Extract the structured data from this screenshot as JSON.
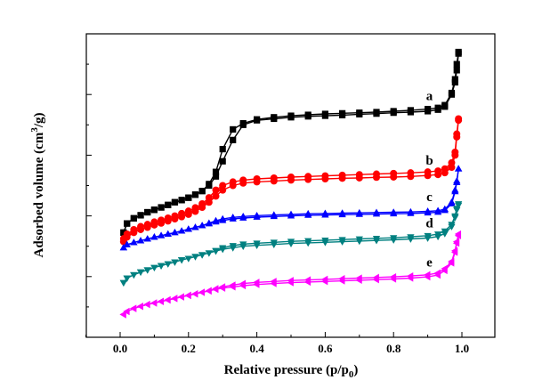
{
  "chart_data": {
    "type": "line",
    "xlabel": {
      "main": "Relative pressure (p/p",
      "sub": "0",
      "tail": ")"
    },
    "ylabel": {
      "main": "Adsorbed volume (cm",
      "sup": "3",
      "tail": "/g)"
    },
    "xlim": [
      -0.1,
      1.05
    ],
    "ylim": [
      0,
      10
    ],
    "xticks": [
      "0.0",
      "0.2",
      "0.4",
      "0.6",
      "0.8",
      "1.0"
    ],
    "grid": false,
    "yticks_labeled": false,
    "series": [
      {
        "label": "a",
        "color": "#000000",
        "marker": "square",
        "x": [
          0.01,
          0.02,
          0.04,
          0.06,
          0.08,
          0.1,
          0.12,
          0.14,
          0.16,
          0.18,
          0.2,
          0.22,
          0.24,
          0.26,
          0.28,
          0.3,
          0.33,
          0.36,
          0.4,
          0.45,
          0.5,
          0.55,
          0.6,
          0.65,
          0.7,
          0.75,
          0.8,
          0.85,
          0.9,
          0.93,
          0.95,
          0.97,
          0.98,
          0.985,
          0.99
        ],
        "y": [
          3.45,
          3.75,
          3.92,
          4.02,
          4.12,
          4.2,
          4.28,
          4.36,
          4.45,
          4.52,
          4.6,
          4.7,
          4.82,
          5.0,
          5.3,
          5.8,
          6.5,
          7.0,
          7.15,
          7.2,
          7.25,
          7.28,
          7.3,
          7.32,
          7.35,
          7.37,
          7.4,
          7.42,
          7.45,
          7.5,
          7.6,
          8.0,
          8.4,
          8.8,
          9.35
        ],
        "desorption_y": [
          3.45,
          3.75,
          3.92,
          4.02,
          4.12,
          4.2,
          4.28,
          4.36,
          4.45,
          4.52,
          4.6,
          4.7,
          4.82,
          5.05,
          5.45,
          6.2,
          6.85,
          7.05,
          7.18,
          7.25,
          7.3,
          7.33,
          7.36,
          7.38,
          7.4,
          7.42,
          7.45,
          7.48,
          7.52,
          7.56,
          7.65,
          8.05,
          8.5,
          9.0,
          9.4
        ]
      },
      {
        "label": "b",
        "color": "#ff0000",
        "marker": "circle",
        "x": [
          0.01,
          0.02,
          0.04,
          0.06,
          0.08,
          0.1,
          0.12,
          0.14,
          0.16,
          0.18,
          0.2,
          0.22,
          0.24,
          0.26,
          0.28,
          0.3,
          0.33,
          0.36,
          0.4,
          0.45,
          0.5,
          0.55,
          0.6,
          0.65,
          0.7,
          0.75,
          0.8,
          0.85,
          0.9,
          0.93,
          0.95,
          0.97,
          0.98,
          0.985,
          0.99
        ],
        "y": [
          3.15,
          3.3,
          3.45,
          3.55,
          3.62,
          3.7,
          3.76,
          3.83,
          3.9,
          3.97,
          4.05,
          4.15,
          4.28,
          4.45,
          4.65,
          4.85,
          5.0,
          5.08,
          5.12,
          5.15,
          5.18,
          5.2,
          5.22,
          5.24,
          5.25,
          5.27,
          5.28,
          5.3,
          5.33,
          5.36,
          5.42,
          5.6,
          6.0,
          6.6,
          7.15
        ],
        "desorption_y": [
          3.25,
          3.4,
          3.55,
          3.65,
          3.72,
          3.8,
          3.86,
          3.93,
          4.0,
          4.08,
          4.16,
          4.27,
          4.4,
          4.6,
          4.85,
          5.0,
          5.12,
          5.18,
          5.22,
          5.25,
          5.28,
          5.3,
          5.32,
          5.34,
          5.36,
          5.38,
          5.4,
          5.42,
          5.45,
          5.48,
          5.55,
          5.75,
          6.1,
          6.7,
          7.2
        ]
      },
      {
        "label": "c",
        "color": "#0000ff",
        "marker": "triangle-up",
        "x": [
          0.01,
          0.02,
          0.04,
          0.06,
          0.08,
          0.1,
          0.12,
          0.14,
          0.16,
          0.18,
          0.2,
          0.22,
          0.24,
          0.26,
          0.28,
          0.3,
          0.33,
          0.36,
          0.4,
          0.45,
          0.5,
          0.55,
          0.6,
          0.65,
          0.7,
          0.75,
          0.8,
          0.85,
          0.9,
          0.93,
          0.95,
          0.97,
          0.98,
          0.985,
          0.99
        ],
        "y": [
          2.95,
          3.05,
          3.12,
          3.18,
          3.24,
          3.3,
          3.35,
          3.4,
          3.45,
          3.5,
          3.56,
          3.62,
          3.68,
          3.74,
          3.8,
          3.85,
          3.9,
          3.93,
          3.96,
          3.98,
          4.0,
          4.02,
          4.03,
          4.04,
          4.05,
          4.06,
          4.07,
          4.08,
          4.1,
          4.12,
          4.18,
          4.4,
          4.8,
          5.1,
          5.55
        ],
        "desorption_y": [
          2.95,
          3.05,
          3.12,
          3.18,
          3.24,
          3.3,
          3.35,
          3.4,
          3.45,
          3.5,
          3.56,
          3.62,
          3.68,
          3.76,
          3.84,
          3.9,
          3.95,
          3.98,
          4.01,
          4.03,
          4.05,
          4.07,
          4.08,
          4.09,
          4.1,
          4.11,
          4.12,
          4.13,
          4.15,
          4.17,
          4.22,
          4.45,
          4.85,
          5.15,
          5.55
        ]
      },
      {
        "label": "d",
        "color": "#008080",
        "marker": "triangle-down",
        "x": [
          0.01,
          0.02,
          0.04,
          0.06,
          0.08,
          0.1,
          0.12,
          0.14,
          0.16,
          0.18,
          0.2,
          0.22,
          0.24,
          0.26,
          0.28,
          0.3,
          0.33,
          0.36,
          0.4,
          0.45,
          0.5,
          0.55,
          0.6,
          0.65,
          0.7,
          0.75,
          0.8,
          0.85,
          0.9,
          0.93,
          0.95,
          0.97,
          0.98,
          0.985,
          0.99
        ],
        "y": [
          1.8,
          1.95,
          2.06,
          2.15,
          2.22,
          2.3,
          2.36,
          2.42,
          2.48,
          2.55,
          2.6,
          2.66,
          2.72,
          2.78,
          2.84,
          2.9,
          2.95,
          3.0,
          3.03,
          3.06,
          3.09,
          3.11,
          3.13,
          3.15,
          3.17,
          3.19,
          3.21,
          3.24,
          3.27,
          3.32,
          3.42,
          3.65,
          3.95,
          4.2,
          4.35
        ],
        "desorption_y": [
          1.8,
          1.95,
          2.06,
          2.15,
          2.22,
          2.3,
          2.36,
          2.42,
          2.48,
          2.55,
          2.6,
          2.66,
          2.72,
          2.78,
          2.86,
          2.95,
          3.02,
          3.07,
          3.1,
          3.13,
          3.16,
          3.18,
          3.2,
          3.22,
          3.24,
          3.26,
          3.28,
          3.31,
          3.35,
          3.4,
          3.5,
          3.72,
          4.0,
          4.25,
          4.4
        ]
      },
      {
        "label": "e",
        "color": "#ff00ff",
        "marker": "triangle-left",
        "x": [
          0.01,
          0.02,
          0.04,
          0.06,
          0.08,
          0.1,
          0.12,
          0.14,
          0.16,
          0.18,
          0.2,
          0.22,
          0.24,
          0.26,
          0.28,
          0.3,
          0.33,
          0.36,
          0.4,
          0.45,
          0.5,
          0.55,
          0.6,
          0.65,
          0.7,
          0.75,
          0.8,
          0.85,
          0.9,
          0.93,
          0.95,
          0.97,
          0.98,
          0.985,
          0.99
        ],
        "y": [
          0.75,
          0.85,
          0.95,
          1.02,
          1.08,
          1.13,
          1.18,
          1.23,
          1.28,
          1.33,
          1.38,
          1.43,
          1.48,
          1.53,
          1.58,
          1.62,
          1.66,
          1.7,
          1.74,
          1.77,
          1.8,
          1.82,
          1.84,
          1.86,
          1.88,
          1.9,
          1.92,
          1.95,
          1.99,
          2.05,
          2.2,
          2.45,
          2.8,
          3.1,
          3.35
        ],
        "desorption_y": [
          0.75,
          0.85,
          0.95,
          1.02,
          1.08,
          1.13,
          1.18,
          1.23,
          1.28,
          1.33,
          1.38,
          1.43,
          1.48,
          1.53,
          1.6,
          1.66,
          1.72,
          1.77,
          1.81,
          1.84,
          1.87,
          1.89,
          1.91,
          1.93,
          1.95,
          1.97,
          1.99,
          2.02,
          2.06,
          2.12,
          2.26,
          2.5,
          2.85,
          3.15,
          3.4
        ]
      }
    ]
  }
}
